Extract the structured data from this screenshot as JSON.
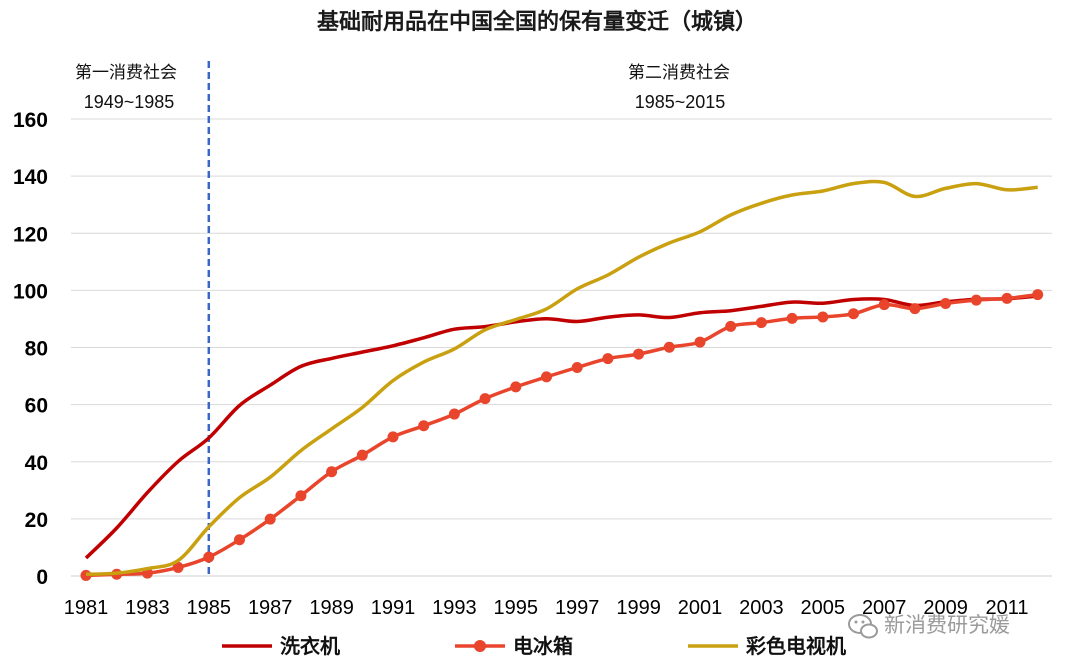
{
  "chart_data": {
    "type": "line",
    "title": "基础耐用品在中国全国的保有量变迁（城镇）",
    "xlabel": "",
    "ylabel": "",
    "ylim": [
      0,
      160
    ],
    "yticks": [
      "0",
      "20",
      "40",
      "60",
      "80",
      "100",
      "120",
      "140",
      "160"
    ],
    "x": [
      1981,
      1982,
      1983,
      1984,
      1985,
      1986,
      1987,
      1988,
      1989,
      1990,
      1991,
      1992,
      1993,
      1994,
      1995,
      1996,
      1997,
      1998,
      1999,
      2000,
      2001,
      2002,
      2003,
      2004,
      2005,
      2006,
      2007,
      2008,
      2009,
      2010,
      2011,
      2012
    ],
    "xticks": [
      "1981",
      "1983",
      "1985",
      "1987",
      "1989",
      "1991",
      "1993",
      "1995",
      "1997",
      "1999",
      "2001",
      "2003",
      "2005",
      "2007",
      "2009",
      "2011"
    ],
    "series": [
      {
        "name": "洗衣机",
        "color": "#c00000",
        "marker": "none",
        "values": [
          6.3,
          16.8,
          29.2,
          40.1,
          48.3,
          59.7,
          66.8,
          73.4,
          76.2,
          78.4,
          80.6,
          83.4,
          86.4,
          87.3,
          89.0,
          90.1,
          89.1,
          90.6,
          91.4,
          90.5,
          92.2,
          92.9,
          94.4,
          95.9,
          95.5,
          96.8,
          96.8,
          94.7,
          96.0,
          96.9,
          97.1,
          98.0
        ]
      },
      {
        "name": "电冰箱",
        "color": "#e8452c",
        "marker": "circle",
        "values": [
          0.2,
          0.6,
          1.0,
          3.0,
          6.6,
          12.7,
          19.9,
          28.1,
          36.5,
          42.3,
          48.7,
          52.6,
          56.7,
          62.1,
          66.2,
          69.7,
          73.0,
          76.1,
          77.7,
          80.1,
          81.9,
          87.4,
          88.7,
          90.2,
          90.7,
          91.8,
          95.0,
          93.6,
          95.4,
          96.6,
          97.2,
          98.5
        ]
      },
      {
        "name": "彩色电视机",
        "color": "#c9a010",
        "marker": "none",
        "values": [
          0.6,
          1.0,
          2.6,
          5.4,
          17.2,
          27.4,
          34.6,
          43.9,
          51.5,
          59.0,
          68.4,
          74.9,
          79.5,
          86.2,
          89.8,
          93.5,
          100.5,
          105.4,
          111.6,
          116.6,
          120.5,
          126.4,
          130.5,
          133.4,
          134.8,
          137.4,
          137.8,
          132.9,
          135.7,
          137.4,
          135.2,
          136.1
        ]
      }
    ],
    "divider": {
      "x": 1985,
      "style": "dashed",
      "color": "#3a66c8"
    },
    "annotations": [
      {
        "label": "第一消费社会",
        "years": "1949~1985"
      },
      {
        "label": "第二消费社会",
        "years": "1985~2015"
      }
    ],
    "legend_position": "bottom",
    "grid": "horizontal"
  },
  "watermark": {
    "text": "新消费研究媛",
    "icon": "wechat-icon"
  }
}
